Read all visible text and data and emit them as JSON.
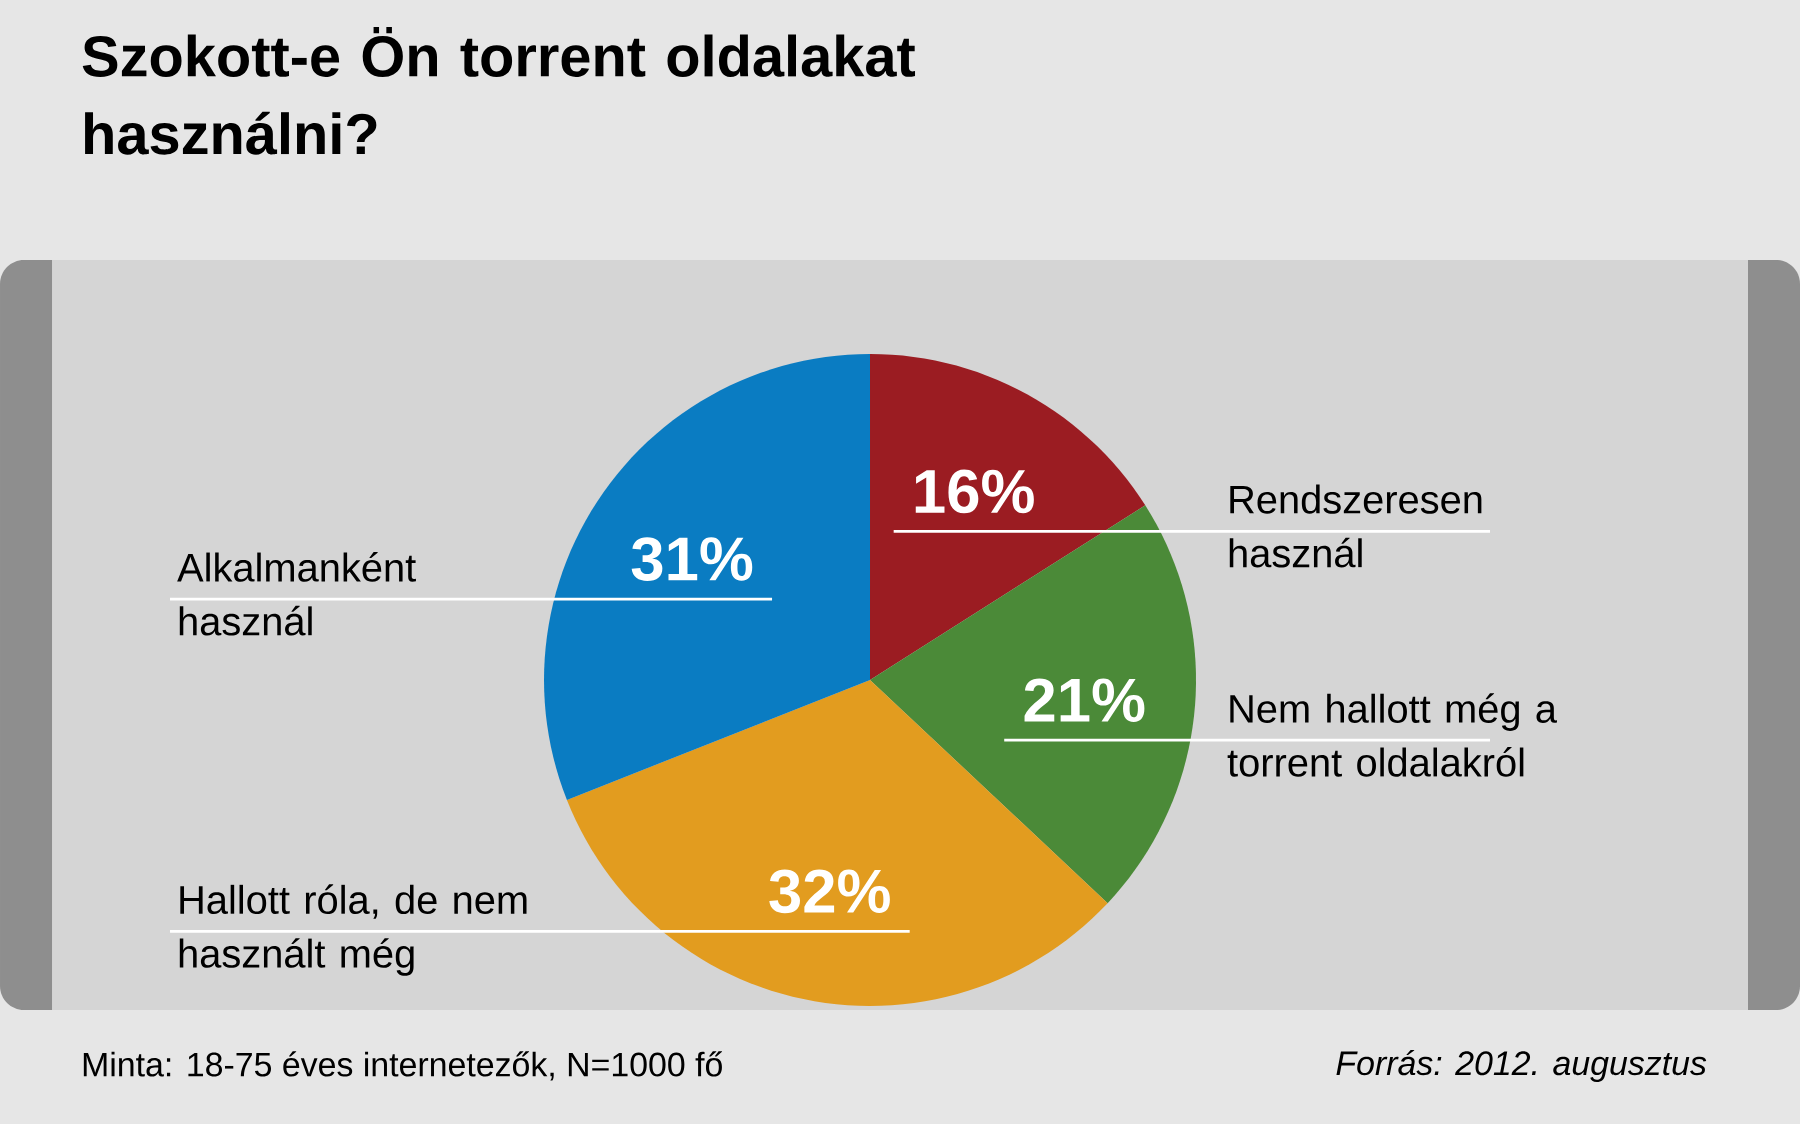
{
  "chart_data": {
    "type": "pie",
    "title": "Szokott-e Ön torrent oldalakat használni?",
    "categories": [
      "Rendszeresen használ",
      "Nem hallott még a torrent oldalakról",
      "Hallott róla, de nem használt még",
      "Alkalmanként használ"
    ],
    "values": [
      16,
      21,
      32,
      31
    ],
    "value_labels": [
      "16%",
      "21%",
      "32%",
      "31%"
    ],
    "colors": [
      "#9b1c22",
      "#4b8a38",
      "#e29c1f",
      "#0a7cc2"
    ],
    "annotations": [
      "Minta: 18-75 éves internetezők, N=1000 fő",
      "Forrás: 2012. augusztus"
    ]
  }
}
